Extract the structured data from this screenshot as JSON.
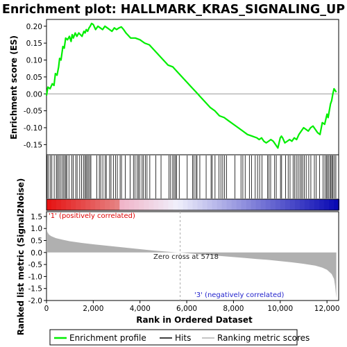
{
  "title": "Enrichment plot: HALLMARK_KRAS_SIGNALING_UP",
  "colors": {
    "enrichment_line": "#00ee00",
    "hits": "#000000",
    "ranking_fill": "#b0b0b0",
    "positive_label": "#dd0000",
    "negative_label": "#2222cc",
    "zero_line": "#999999"
  },
  "chart_data": [
    {
      "type": "line",
      "name": "enrichment-score-panel",
      "ylabel": "Enrichment score (ES)",
      "ylim": [
        -0.18,
        0.22
      ],
      "xlim": [
        0,
        12500
      ],
      "yticks": [
        -0.15,
        -0.1,
        -0.05,
        0.0,
        0.05,
        0.1,
        0.15,
        0.2
      ],
      "ytick_labels": [
        "-0.15",
        "-0.10",
        "-0.05",
        "0.00",
        "0.05",
        "0.10",
        "0.15",
        "0.20"
      ],
      "series": [
        {
          "name": "Enrichment profile",
          "x": [
            0,
            60,
            150,
            250,
            320,
            380,
            450,
            520,
            560,
            620,
            700,
            760,
            820,
            900,
            980,
            1050,
            1100,
            1150,
            1230,
            1300,
            1380,
            1450,
            1520,
            1600,
            1650,
            1700,
            1760,
            1820,
            1870,
            1930,
            2000,
            2100,
            2200,
            2300,
            2400,
            2500,
            2600,
            2700,
            2800,
            2900,
            3000,
            3100,
            3200,
            3300,
            3400,
            3600,
            3800,
            4000,
            4200,
            4400,
            4600,
            4800,
            5000,
            5200,
            5400,
            5600,
            5800,
            6000,
            6200,
            6400,
            6600,
            6800,
            7000,
            7200,
            7400,
            7600,
            7800,
            8000,
            8200,
            8400,
            8600,
            8800,
            9000,
            9100,
            9200,
            9300,
            9400,
            9500,
            9600,
            9700,
            9800,
            9900,
            10000,
            10050,
            10100,
            10200,
            10300,
            10400,
            10500,
            10600,
            10700,
            10800,
            10900,
            11000,
            11100,
            11200,
            11300,
            11400,
            11500,
            11600,
            11700,
            11800,
            11900,
            12000,
            12050,
            12100,
            12150,
            12200,
            12250,
            12300,
            12400
          ],
          "y": [
            -0.005,
            0.02,
            0.015,
            0.03,
            0.025,
            0.06,
            0.055,
            0.08,
            0.105,
            0.1,
            0.14,
            0.135,
            0.165,
            0.16,
            0.17,
            0.155,
            0.175,
            0.165,
            0.18,
            0.17,
            0.18,
            0.175,
            0.17,
            0.185,
            0.18,
            0.19,
            0.185,
            0.195,
            0.2,
            0.208,
            0.205,
            0.19,
            0.2,
            0.195,
            0.19,
            0.2,
            0.195,
            0.19,
            0.185,
            0.195,
            0.19,
            0.195,
            0.198,
            0.19,
            0.18,
            0.165,
            0.165,
            0.16,
            0.15,
            0.145,
            0.13,
            0.115,
            0.1,
            0.085,
            0.08,
            0.065,
            0.05,
            0.035,
            0.02,
            0.005,
            -0.01,
            -0.025,
            -0.04,
            -0.05,
            -0.065,
            -0.07,
            -0.08,
            -0.09,
            -0.1,
            -0.11,
            -0.12,
            -0.125,
            -0.13,
            -0.135,
            -0.13,
            -0.14,
            -0.145,
            -0.14,
            -0.135,
            -0.14,
            -0.15,
            -0.16,
            -0.13,
            -0.125,
            -0.13,
            -0.145,
            -0.14,
            -0.135,
            -0.14,
            -0.13,
            -0.135,
            -0.12,
            -0.11,
            -0.1,
            -0.105,
            -0.11,
            -0.1,
            -0.095,
            -0.105,
            -0.115,
            -0.12,
            -0.085,
            -0.09,
            -0.06,
            -0.07,
            -0.05,
            -0.03,
            -0.02,
            0.0,
            0.015,
            0.005
          ]
        }
      ],
      "zero_line": true
    },
    {
      "type": "bar",
      "name": "hits-panel",
      "series": [
        {
          "name": "Hits",
          "x": [
            30,
            90,
            170,
            230,
            330,
            420,
            470,
            530,
            590,
            660,
            720,
            780,
            830,
            870,
            960,
            1080,
            1140,
            1250,
            1310,
            1420,
            1500,
            1580,
            1640,
            1690,
            1740,
            1790,
            1850,
            1900,
            2150,
            2260,
            2320,
            2410,
            2510,
            2560,
            2700,
            2760,
            2860,
            2950,
            3030,
            3150,
            3210,
            3370,
            3580,
            3720,
            3790,
            3880,
            3930,
            3990,
            4090,
            4150,
            4230,
            4300,
            4420,
            4680,
            4900,
            5240,
            5310,
            5400,
            5460,
            5520,
            5560,
            5680,
            6020,
            6250,
            6310,
            6390,
            6440,
            6560,
            6830,
            7040,
            7090,
            7210,
            7380,
            7460,
            7540,
            7620,
            7700,
            8060,
            8320,
            8400,
            8500,
            8680,
            8770,
            8930,
            9030,
            9120,
            9220,
            9460,
            9520,
            9590,
            9760,
            9830,
            10010,
            10060,
            10230,
            10340,
            10420,
            10550,
            10620,
            10690,
            10760,
            10840,
            10900,
            10960,
            11030,
            11110,
            11220,
            11310,
            11460,
            11540,
            11680,
            11830,
            11910,
            11970,
            12010,
            12070,
            12130,
            12170,
            12220,
            12260,
            12320,
            12380
          ]
        }
      ]
    },
    {
      "type": "area",
      "name": "ranked-metric-panel",
      "ylabel": "Ranked list metric (Signal2Noise)",
      "xlabel": "Rank in Ordered Dataset",
      "ylim": [
        -2.0,
        1.7
      ],
      "xlim": [
        0,
        12500
      ],
      "yticks": [
        -2.0,
        -1.5,
        -1.0,
        -0.5,
        0.0,
        0.5,
        1.0,
        1.5
      ],
      "ytick_labels": [
        "-2.0",
        "-1.5",
        "-1.0",
        "-0.5",
        "0.0",
        "0.5",
        "1.0",
        "1.5"
      ],
      "xticks": [
        0,
        2000,
        4000,
        6000,
        8000,
        10000,
        12000
      ],
      "xtick_labels": [
        "0",
        "2,000",
        "4,000",
        "6,000",
        "8,000",
        "10,000",
        "12,000"
      ],
      "series": [
        {
          "name": "Ranking metric scores",
          "x": [
            0,
            10,
            40,
            100,
            200,
            400,
            700,
            1000,
            1500,
            2000,
            2500,
            3000,
            3500,
            4000,
            4500,
            5000,
            5500,
            5718,
            6000,
            6500,
            7000,
            7500,
            8000,
            8500,
            9000,
            9500,
            10000,
            10500,
            11000,
            11500,
            11800,
            12000,
            12200,
            12300,
            12350,
            12400
          ],
          "y": [
            1.55,
            1.0,
            0.85,
            0.75,
            0.68,
            0.6,
            0.53,
            0.47,
            0.4,
            0.34,
            0.29,
            0.24,
            0.19,
            0.14,
            0.09,
            0.05,
            0.01,
            0.0,
            -0.03,
            -0.07,
            -0.11,
            -0.15,
            -0.19,
            -0.23,
            -0.27,
            -0.31,
            -0.36,
            -0.41,
            -0.47,
            -0.55,
            -0.63,
            -0.72,
            -0.9,
            -1.1,
            -1.4,
            -1.9
          ]
        }
      ],
      "annotations": {
        "zero_cross": "Zero cross at 5718",
        "positive": "'1' (positively correlated)",
        "negative": "'3' (negatively correlated)"
      }
    }
  ],
  "legend": {
    "items": [
      {
        "label": "Enrichment profile",
        "color": "#00ee00"
      },
      {
        "label": "Hits",
        "color": "#000000"
      },
      {
        "label": "Ranking metric scores",
        "color": "#b0b0b0"
      }
    ]
  }
}
